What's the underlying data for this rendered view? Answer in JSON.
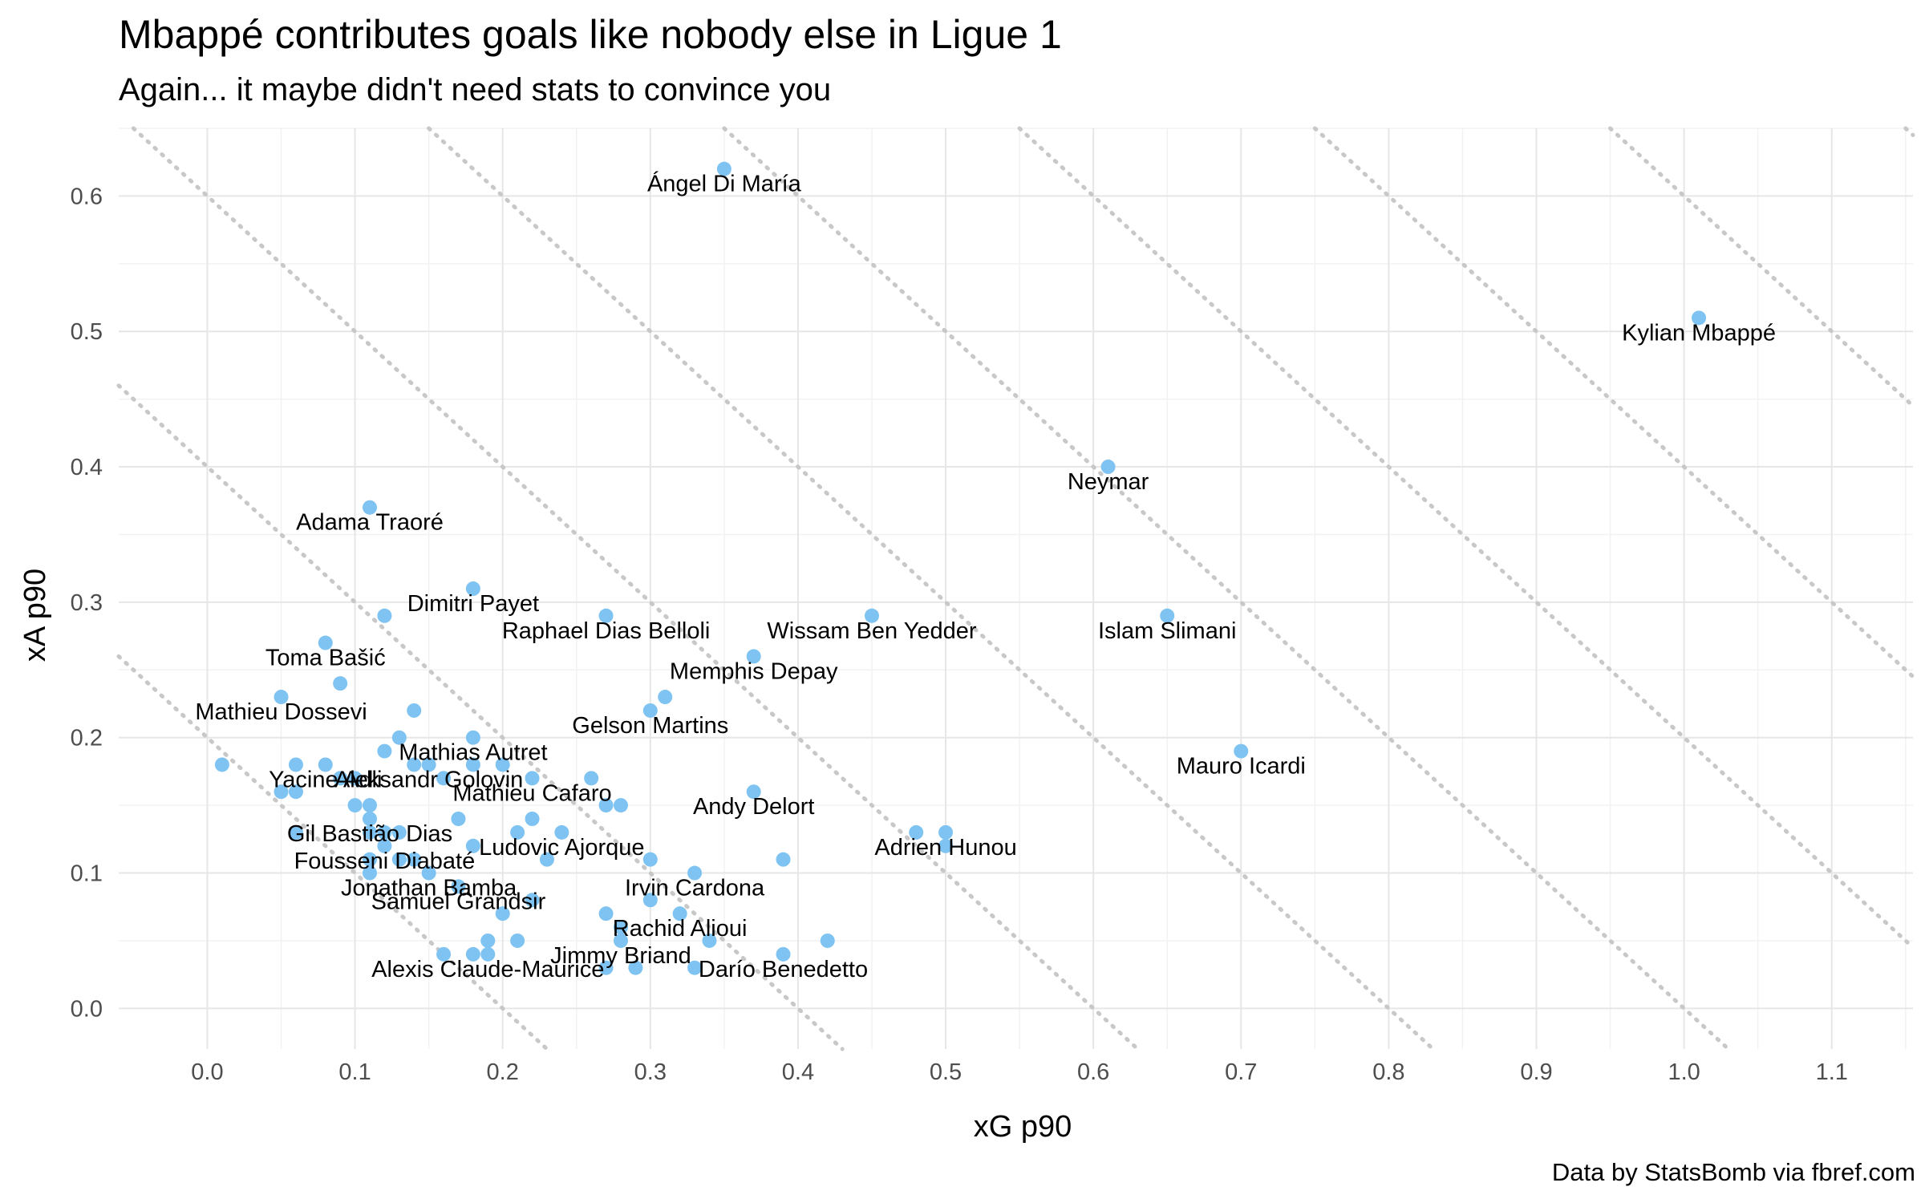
{
  "chart_data": {
    "type": "scatter",
    "title": "Mbappé contributes goals like nobody else in Ligue 1",
    "subtitle": "Again... it maybe didn't need stats to convince you",
    "xlabel": "xG p90",
    "ylabel": "xA p90",
    "caption": "Data by StatsBomb via fbref.com",
    "xlim": [
      -0.06,
      1.155
    ],
    "ylim": [
      -0.03,
      0.65
    ],
    "xticks": [
      "0.0",
      "0.1",
      "0.2",
      "0.3",
      "0.4",
      "0.5",
      "0.6",
      "0.7",
      "0.8",
      "0.9",
      "1.0",
      "1.1"
    ],
    "yticks": [
      "0.0",
      "0.1",
      "0.2",
      "0.3",
      "0.4",
      "0.5",
      "0.6"
    ],
    "grid": true,
    "point_color": "#7ec3f2",
    "guide_line_sums": [
      0.2,
      0.4,
      0.6,
      0.8,
      1.0,
      1.2,
      1.4,
      1.6,
      1.8,
      2.0
    ],
    "points": [
      {
        "x": 1.01,
        "y": 0.51,
        "label": "Kylian Mbappé"
      },
      {
        "x": 0.35,
        "y": 0.62,
        "label": "Ángel Di María"
      },
      {
        "x": 0.61,
        "y": 0.4,
        "label": "Neymar"
      },
      {
        "x": 0.11,
        "y": 0.37,
        "label": "Adama Traoré"
      },
      {
        "x": 0.18,
        "y": 0.31,
        "label": "Dimitri Payet"
      },
      {
        "x": 0.27,
        "y": 0.29,
        "label": "Raphael Dias Belloli"
      },
      {
        "x": 0.45,
        "y": 0.29,
        "label": "Wissam Ben Yedder"
      },
      {
        "x": 0.65,
        "y": 0.29,
        "label": "Islam Slimani"
      },
      {
        "x": 0.08,
        "y": 0.27,
        "label": "Toma Bašić"
      },
      {
        "x": 0.37,
        "y": 0.26,
        "label": "Memphis Depay"
      },
      {
        "x": 0.05,
        "y": 0.23,
        "label": "Mathieu Dossevi"
      },
      {
        "x": 0.3,
        "y": 0.22,
        "label": "Gelson Martins"
      },
      {
        "x": 0.18,
        "y": 0.2,
        "label": "Mathias Autret"
      },
      {
        "x": 0.7,
        "y": 0.19,
        "label": "Mauro Icardi"
      },
      {
        "x": 0.15,
        "y": 0.18,
        "label": "Aleksandr Golovin"
      },
      {
        "x": 0.08,
        "y": 0.18,
        "label": "Yacine Adli"
      },
      {
        "x": 0.22,
        "y": 0.17,
        "label": "Mathieu Cafaro"
      },
      {
        "x": 0.37,
        "y": 0.16,
        "label": "Andy Delort"
      },
      {
        "x": 0.11,
        "y": 0.14,
        "label": "Gil Bastião Dias"
      },
      {
        "x": 0.5,
        "y": 0.13,
        "label": "Adrien Hunou"
      },
      {
        "x": 0.12,
        "y": 0.12,
        "label": "Fousseni Diabaté"
      },
      {
        "x": 0.24,
        "y": 0.13,
        "label": "Ludovic Ajorque"
      },
      {
        "x": 0.15,
        "y": 0.1,
        "label": "Jonathan Bamba"
      },
      {
        "x": 0.33,
        "y": 0.1,
        "label": "Irvin Cardona"
      },
      {
        "x": 0.17,
        "y": 0.09,
        "label": "Samuel Grandsir"
      },
      {
        "x": 0.32,
        "y": 0.07,
        "label": "Rachid Alioui"
      },
      {
        "x": 0.28,
        "y": 0.05,
        "label": "Jimmy Briand"
      },
      {
        "x": 0.19,
        "y": 0.04,
        "label": "Alexis Claude-Maurice"
      },
      {
        "x": 0.39,
        "y": 0.04,
        "label": "Darío Benedetto"
      },
      {
        "x": 0.01,
        "y": 0.18,
        "label": ""
      },
      {
        "x": 0.05,
        "y": 0.16,
        "label": ""
      },
      {
        "x": 0.06,
        "y": 0.16,
        "label": ""
      },
      {
        "x": 0.06,
        "y": 0.18,
        "label": ""
      },
      {
        "x": 0.06,
        "y": 0.13,
        "label": ""
      },
      {
        "x": 0.09,
        "y": 0.24,
        "label": ""
      },
      {
        "x": 0.09,
        "y": 0.17,
        "label": ""
      },
      {
        "x": 0.1,
        "y": 0.15,
        "label": ""
      },
      {
        "x": 0.1,
        "y": 0.17,
        "label": ""
      },
      {
        "x": 0.11,
        "y": 0.15,
        "label": ""
      },
      {
        "x": 0.11,
        "y": 0.13,
        "label": ""
      },
      {
        "x": 0.11,
        "y": 0.11,
        "label": ""
      },
      {
        "x": 0.11,
        "y": 0.1,
        "label": ""
      },
      {
        "x": 0.12,
        "y": 0.29,
        "label": ""
      },
      {
        "x": 0.12,
        "y": 0.13,
        "label": ""
      },
      {
        "x": 0.12,
        "y": 0.19,
        "label": ""
      },
      {
        "x": 0.13,
        "y": 0.13,
        "label": ""
      },
      {
        "x": 0.13,
        "y": 0.11,
        "label": ""
      },
      {
        "x": 0.13,
        "y": 0.2,
        "label": ""
      },
      {
        "x": 0.14,
        "y": 0.22,
        "label": ""
      },
      {
        "x": 0.14,
        "y": 0.18,
        "label": ""
      },
      {
        "x": 0.14,
        "y": 0.11,
        "label": ""
      },
      {
        "x": 0.16,
        "y": 0.04,
        "label": ""
      },
      {
        "x": 0.16,
        "y": 0.17,
        "label": ""
      },
      {
        "x": 0.17,
        "y": 0.14,
        "label": ""
      },
      {
        "x": 0.18,
        "y": 0.18,
        "label": ""
      },
      {
        "x": 0.18,
        "y": 0.12,
        "label": ""
      },
      {
        "x": 0.18,
        "y": 0.04,
        "label": ""
      },
      {
        "x": 0.19,
        "y": 0.05,
        "label": ""
      },
      {
        "x": 0.2,
        "y": 0.18,
        "label": ""
      },
      {
        "x": 0.2,
        "y": 0.07,
        "label": ""
      },
      {
        "x": 0.21,
        "y": 0.13,
        "label": ""
      },
      {
        "x": 0.21,
        "y": 0.05,
        "label": ""
      },
      {
        "x": 0.22,
        "y": 0.14,
        "label": ""
      },
      {
        "x": 0.22,
        "y": 0.08,
        "label": ""
      },
      {
        "x": 0.23,
        "y": 0.11,
        "label": ""
      },
      {
        "x": 0.26,
        "y": 0.17,
        "label": ""
      },
      {
        "x": 0.27,
        "y": 0.15,
        "label": ""
      },
      {
        "x": 0.27,
        "y": 0.07,
        "label": ""
      },
      {
        "x": 0.27,
        "y": 0.03,
        "label": ""
      },
      {
        "x": 0.28,
        "y": 0.15,
        "label": ""
      },
      {
        "x": 0.28,
        "y": 0.06,
        "label": ""
      },
      {
        "x": 0.29,
        "y": 0.03,
        "label": ""
      },
      {
        "x": 0.3,
        "y": 0.11,
        "label": ""
      },
      {
        "x": 0.3,
        "y": 0.08,
        "label": ""
      },
      {
        "x": 0.31,
        "y": 0.23,
        "label": ""
      },
      {
        "x": 0.33,
        "y": 0.03,
        "label": ""
      },
      {
        "x": 0.34,
        "y": 0.05,
        "label": ""
      },
      {
        "x": 0.39,
        "y": 0.11,
        "label": ""
      },
      {
        "x": 0.42,
        "y": 0.05,
        "label": ""
      },
      {
        "x": 0.48,
        "y": 0.13,
        "label": ""
      },
      {
        "x": 0.5,
        "y": 0.12,
        "label": ""
      }
    ]
  }
}
